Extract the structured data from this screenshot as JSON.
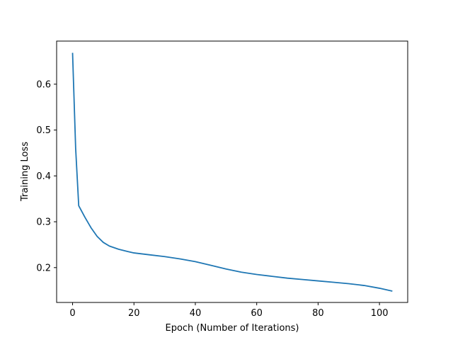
{
  "chart_data": {
    "type": "line",
    "title": "",
    "xlabel": "Epoch (Number of Iterations)",
    "ylabel": "Training Loss",
    "xlim": [
      -5.2,
      109.2
    ],
    "ylim": [
      0.124,
      0.694
    ],
    "xticks": [
      0,
      20,
      40,
      60,
      80,
      100
    ],
    "yticks": [
      0.2,
      0.3,
      0.4,
      0.5,
      0.6
    ],
    "ytick_labels": [
      "0.2",
      "0.3",
      "0.4",
      "0.5",
      "0.6"
    ],
    "grid": false,
    "series": [
      {
        "color": "#1f77b4",
        "points": [
          [
            0,
            0.667
          ],
          [
            1,
            0.46
          ],
          [
            2,
            0.335
          ],
          [
            4,
            0.31
          ],
          [
            6,
            0.287
          ],
          [
            8,
            0.268
          ],
          [
            10,
            0.255
          ],
          [
            12,
            0.247
          ],
          [
            15,
            0.24
          ],
          [
            18,
            0.235
          ],
          [
            20,
            0.232
          ],
          [
            25,
            0.228
          ],
          [
            30,
            0.224
          ],
          [
            35,
            0.219
          ],
          [
            40,
            0.213
          ],
          [
            45,
            0.205
          ],
          [
            50,
            0.197
          ],
          [
            55,
            0.19
          ],
          [
            60,
            0.185
          ],
          [
            65,
            0.181
          ],
          [
            70,
            0.177
          ],
          [
            75,
            0.174
          ],
          [
            80,
            0.171
          ],
          [
            85,
            0.168
          ],
          [
            90,
            0.165
          ],
          [
            95,
            0.161
          ],
          [
            100,
            0.155
          ],
          [
            104,
            0.149
          ]
        ]
      }
    ]
  }
}
